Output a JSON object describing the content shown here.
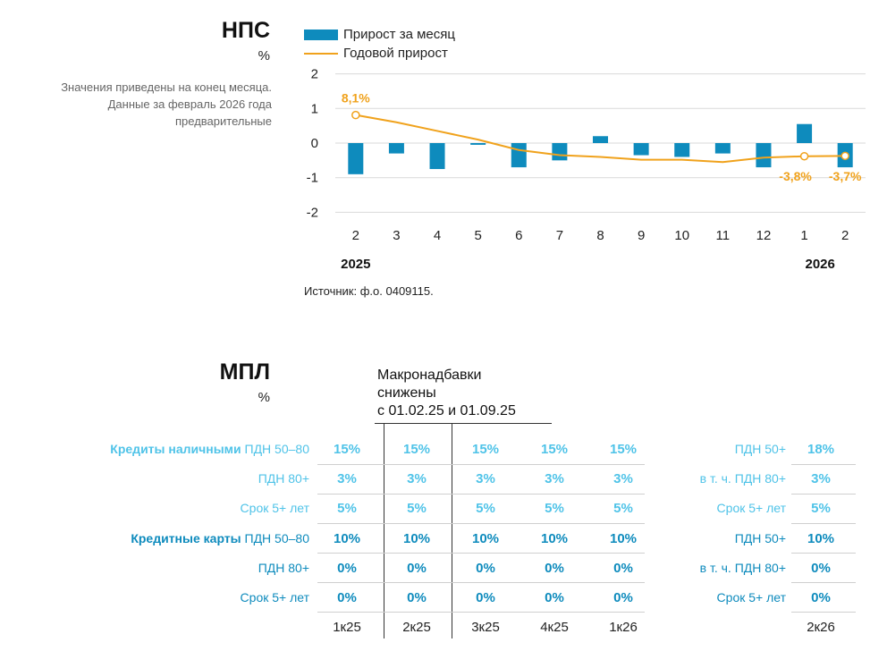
{
  "nps": {
    "title": "НПС",
    "unit": "%",
    "note_lines": [
      "Значения приведены на конец месяца.",
      "Данные за февраль 2026 года",
      "предварительные"
    ],
    "legend": {
      "bar": "Прирост за месяц",
      "line": "Годовой прирост"
    },
    "source": "Источник: ф.о. 0409115."
  },
  "chart_data": {
    "type": "bar",
    "categories": [
      "2",
      "3",
      "4",
      "5",
      "6",
      "7",
      "8",
      "9",
      "10",
      "11",
      "12",
      "1",
      "2"
    ],
    "year_labels": [
      "2025",
      "2026"
    ],
    "series": [
      {
        "name": "Прирост за месяц",
        "type": "bar",
        "values": [
          -0.9,
          -0.3,
          -0.75,
          -0.05,
          -0.7,
          -0.5,
          0.2,
          -0.35,
          -0.4,
          -0.3,
          -0.7,
          0.55,
          -0.7
        ]
      },
      {
        "name": "Годовой прирост",
        "type": "line",
        "values": [
          0.81,
          0.6,
          0.35,
          0.1,
          -0.2,
          -0.35,
          -0.4,
          -0.48,
          -0.48,
          -0.55,
          -0.42,
          -0.38,
          -0.37
        ]
      }
    ],
    "annotations": [
      "8,1%",
      "-3,8%",
      "-3,7%"
    ],
    "yticks": [
      "2",
      "1",
      "0",
      "-1",
      "-2"
    ],
    "ylim": [
      -2,
      2
    ],
    "colors": {
      "bar": "#0e8bbd",
      "line": "#f0a21c"
    }
  },
  "mpl": {
    "title": "МПЛ",
    "unit": "%",
    "macro_lines": [
      "Макронадбавки",
      "снижены",
      "с 01.02.25 и 01.09.25"
    ],
    "groups": [
      {
        "name": "Кредиты наличными",
        "color": "#4fc3e8",
        "rows": [
          {
            "label": "ПДН 50–80",
            "values": [
              "15%",
              "15%",
              "15%",
              "15%",
              "15%"
            ],
            "right_label": "ПДН 50+",
            "right_value": "18%"
          },
          {
            "label": "ПДН 80+",
            "values": [
              "3%",
              "3%",
              "3%",
              "3%",
              "3%"
            ],
            "right_label": "в т. ч. ПДН 80+",
            "right_value": "3%"
          },
          {
            "label": "Срок 5+ лет",
            "values": [
              "5%",
              "5%",
              "5%",
              "5%",
              "5%"
            ],
            "right_label": "Срок 5+ лет",
            "right_value": "5%"
          }
        ]
      },
      {
        "name": "Кредитные карты",
        "color": "#0e8bbd",
        "rows": [
          {
            "label": "ПДН 50–80",
            "values": [
              "10%",
              "10%",
              "10%",
              "10%",
              "10%"
            ],
            "right_label": "ПДН 50+",
            "right_value": "10%"
          },
          {
            "label": "ПДН 80+",
            "values": [
              "0%",
              "0%",
              "0%",
              "0%",
              "0%"
            ],
            "right_label": "в т. ч. ПДН 80+",
            "right_value": "0%"
          },
          {
            "label": "Срок 5+ лет",
            "values": [
              "0%",
              "0%",
              "0%",
              "0%",
              "0%"
            ],
            "right_label": "Срок 5+ лет",
            "right_value": "0%"
          }
        ]
      }
    ],
    "columns": [
      "1к25",
      "2к25",
      "3к25",
      "4к25",
      "1к26"
    ],
    "right_column": "2к26"
  }
}
